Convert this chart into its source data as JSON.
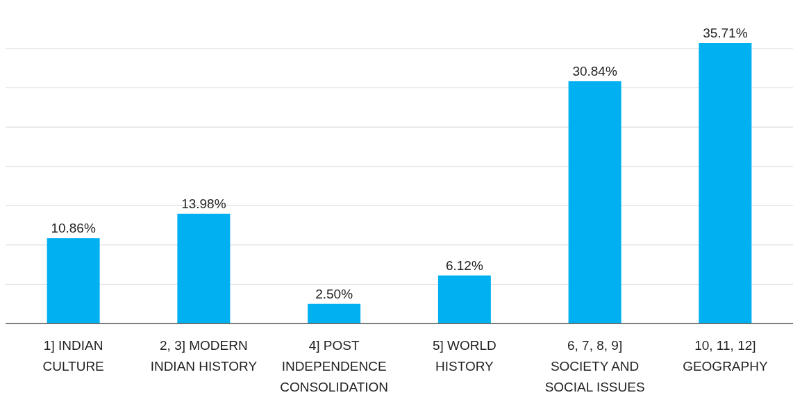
{
  "chart_data": {
    "type": "bar",
    "categories": [
      "1] INDIAN CULTURE",
      "2, 3] MODERN INDIAN HISTORY",
      "4] POST INDEPENDENCE CONSOLIDATION",
      "5] WORLD HISTORY",
      "6, 7, 8, 9] SOCIETY AND SOCIAL ISSUES",
      "10, 11, 12] GEOGRAPHY"
    ],
    "values": [
      10.86,
      13.98,
      2.5,
      6.12,
      30.84,
      35.71
    ],
    "value_labels": [
      "10.86%",
      "13.98%",
      "2.50%",
      "6.12%",
      "30.84%",
      "35.71%"
    ],
    "color": "#00b0f0",
    "yticks": [
      {
        "value": 0,
        "label": null
      },
      {
        "value": 5,
        "label": null
      },
      {
        "value": 10,
        "label": null
      },
      {
        "value": 15,
        "label": null
      },
      {
        "value": 20,
        "label": null
      },
      {
        "value": 25,
        "label": null
      },
      {
        "value": 30,
        "label": null
      },
      {
        "value": 35,
        "label": null
      }
    ],
    "grid": "y",
    "tick_labels": "x"
  }
}
